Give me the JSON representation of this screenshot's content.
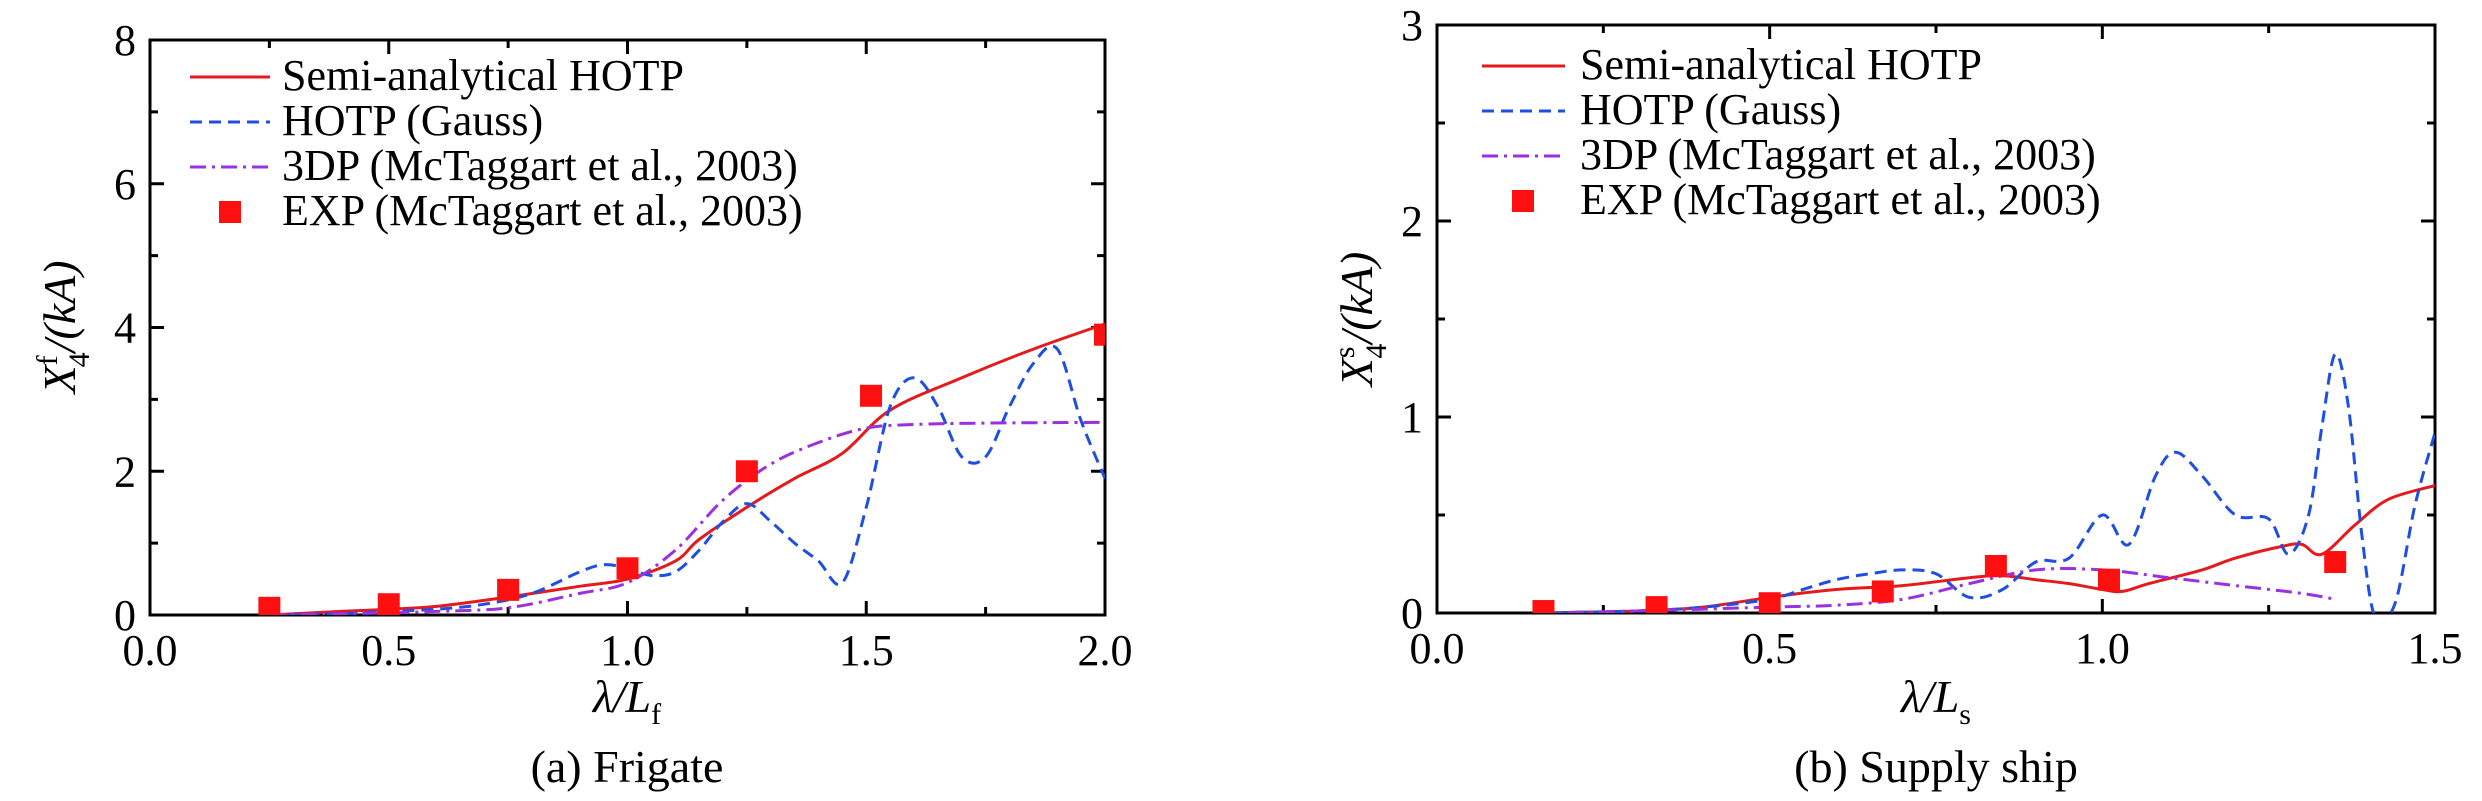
{
  "colors": {
    "semi": "#e41a1c",
    "gauss": "#1f4fe0",
    "threeDP": "#9b30e0",
    "exp": "#ff1010"
  },
  "chart_data": [
    {
      "type": "line",
      "caption": "(a) Frigate",
      "xlabel": {
        "main": "λ/L",
        "sub": "f"
      },
      "ylabel": {
        "main": "X",
        "sup": "f",
        "sub": "4",
        "rest": "/(kA)"
      },
      "xlim": [
        0,
        2
      ],
      "ylim": [
        0,
        8
      ],
      "xticks": [
        0,
        0.5,
        1.0,
        1.5,
        2.0
      ],
      "xtick_labels": [
        "0.0",
        "0.5",
        "1.0",
        "1.5",
        "2.0"
      ],
      "yticks": [
        0,
        2,
        4,
        6,
        8
      ],
      "ytick_labels": [
        "0",
        "2",
        "4",
        "6",
        "8"
      ],
      "legend": [
        "Semi-analytical HOTP",
        "HOTP (Gauss)",
        "3DP (McTaggart et al., 2003)",
        "EXP (McTaggart et al., 2003)"
      ],
      "series": [
        {
          "name": "Semi-analytical HOTP",
          "style": "solid",
          "x": [
            0.25,
            0.4,
            0.5,
            0.6,
            0.75,
            0.9,
            1.0,
            1.1,
            1.15,
            1.25,
            1.35,
            1.45,
            1.55,
            1.7,
            1.85,
            2.0
          ],
          "y": [
            0.0,
            0.05,
            0.08,
            0.12,
            0.25,
            0.4,
            0.5,
            0.75,
            1.05,
            1.5,
            1.9,
            2.25,
            2.85,
            3.3,
            3.7,
            4.05
          ]
        },
        {
          "name": "HOTP (Gauss)",
          "style": "dashed",
          "x": [
            0.25,
            0.4,
            0.5,
            0.6,
            0.7,
            0.8,
            0.9,
            0.95,
            1.0,
            1.05,
            1.1,
            1.15,
            1.2,
            1.25,
            1.3,
            1.35,
            1.4,
            1.45,
            1.5,
            1.55,
            1.6,
            1.65,
            1.7,
            1.75,
            1.8,
            1.85,
            1.9,
            1.95,
            2.0
          ],
          "y": [
            0.0,
            0.02,
            0.05,
            0.08,
            0.15,
            0.3,
            0.6,
            0.7,
            0.65,
            0.55,
            0.6,
            0.9,
            1.3,
            1.55,
            1.3,
            1.0,
            0.75,
            0.45,
            1.5,
            2.9,
            3.3,
            2.9,
            2.2,
            2.2,
            2.9,
            3.5,
            3.7,
            2.7,
            1.9
          ]
        },
        {
          "name": "3DP (McTaggart et al., 2003)",
          "style": "dashdot",
          "x": [
            0.25,
            0.5,
            0.6,
            0.75,
            0.9,
            1.0,
            1.1,
            1.2,
            1.3,
            1.4,
            1.5,
            1.6,
            1.75,
            2.0
          ],
          "y": [
            0.0,
            0.03,
            0.05,
            0.1,
            0.3,
            0.45,
            0.9,
            1.6,
            2.1,
            2.4,
            2.6,
            2.65,
            2.67,
            2.68
          ]
        },
        {
          "name": "EXP (McTaggart et al., 2003)",
          "style": "markers",
          "x": [
            0.25,
            0.5,
            0.75,
            1.0,
            1.25,
            1.51,
            2.0
          ],
          "y": [
            0.1,
            0.15,
            0.35,
            0.65,
            2.0,
            3.05,
            3.9
          ]
        }
      ]
    },
    {
      "type": "line",
      "caption": "(b) Supply ship",
      "xlabel": {
        "main": "λ/L",
        "sub": "s"
      },
      "ylabel": {
        "main": "X",
        "sup": "s",
        "sub": "4",
        "rest": "/(kA)"
      },
      "xlim": [
        0,
        1.5
      ],
      "ylim": [
        0,
        3
      ],
      "xticks": [
        0,
        0.5,
        1.0,
        1.5
      ],
      "xtick_labels": [
        "0.0",
        "0.5",
        "1.0",
        "1.5"
      ],
      "yticks": [
        0,
        1,
        2,
        3
      ],
      "ytick_labels": [
        "0",
        "1",
        "2",
        "3"
      ],
      "legend": [
        "Semi-analytical HOTP",
        "HOTP (Gauss)",
        "3DP (McTaggart et al., 2003)",
        "EXP (McTaggart et al., 2003)"
      ],
      "series": [
        {
          "name": "Semi-analytical HOTP",
          "style": "solid",
          "x": [
            0.15,
            0.3,
            0.4,
            0.5,
            0.6,
            0.7,
            0.8,
            0.85,
            0.9,
            0.95,
            1.0,
            1.03,
            1.07,
            1.15,
            1.2,
            1.27,
            1.3,
            1.33,
            1.38,
            1.43,
            1.5
          ],
          "y": [
            0.0,
            0.01,
            0.03,
            0.08,
            0.12,
            0.14,
            0.18,
            0.19,
            0.17,
            0.15,
            0.12,
            0.11,
            0.15,
            0.22,
            0.28,
            0.34,
            0.35,
            0.3,
            0.45,
            0.58,
            0.65
          ]
        },
        {
          "name": "HOTP (Gauss)",
          "style": "dashed",
          "x": [
            0.15,
            0.3,
            0.4,
            0.5,
            0.55,
            0.6,
            0.65,
            0.7,
            0.75,
            0.8,
            0.85,
            0.9,
            0.95,
            1.0,
            1.04,
            1.08,
            1.11,
            1.15,
            1.2,
            1.25,
            1.28,
            1.31,
            1.33,
            1.35,
            1.37,
            1.39,
            1.41,
            1.44,
            1.47,
            1.5
          ],
          "y": [
            0.0,
            0.01,
            0.03,
            0.07,
            0.12,
            0.17,
            0.2,
            0.22,
            0.2,
            0.08,
            0.12,
            0.26,
            0.28,
            0.5,
            0.35,
            0.7,
            0.82,
            0.7,
            0.5,
            0.48,
            0.3,
            0.5,
            0.95,
            1.32,
            1.05,
            0.4,
            -0.02,
            0.05,
            0.55,
            0.92
          ]
        },
        {
          "name": "3DP (McTaggart et al., 2003)",
          "style": "dashdot",
          "x": [
            0.15,
            0.3,
            0.5,
            0.6,
            0.7,
            0.8,
            0.9,
            1.0,
            1.1,
            1.2,
            1.3,
            1.35
          ],
          "y": [
            0.0,
            0.01,
            0.03,
            0.04,
            0.07,
            0.15,
            0.22,
            0.22,
            0.18,
            0.14,
            0.1,
            0.07
          ]
        },
        {
          "name": "EXP (McTaggart et al., 2003)",
          "style": "markers",
          "x": [
            0.16,
            0.33,
            0.5,
            0.67,
            0.84,
            1.01,
            1.35
          ],
          "y": [
            0.01,
            0.03,
            0.05,
            0.11,
            0.24,
            0.17,
            0.26
          ]
        }
      ]
    }
  ]
}
